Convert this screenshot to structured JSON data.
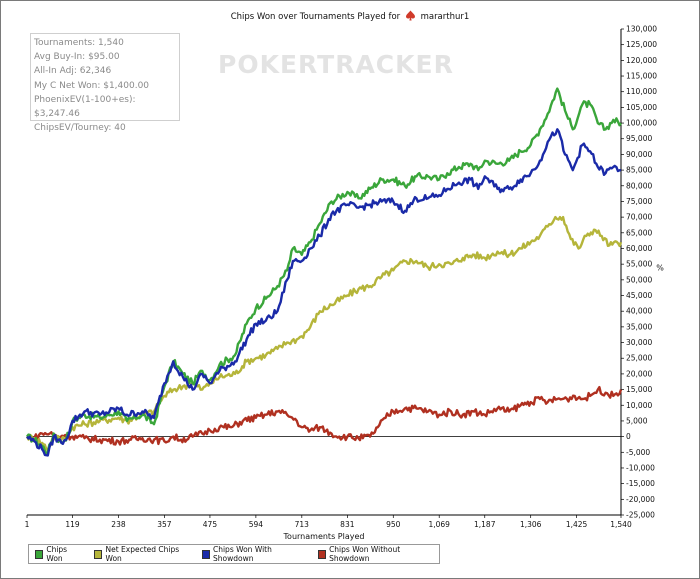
{
  "chart_data": {
    "type": "line",
    "title": "Chips Won over Tournaments Played for",
    "player": "mararthur1",
    "xlabel": "Tournaments Played",
    "ylabel": "%",
    "xlim": [
      1,
      1540
    ],
    "ylim": [
      -25000,
      130000
    ],
    "x_ticks": [
      1,
      119,
      238,
      357,
      475,
      594,
      713,
      831,
      950,
      1069,
      1187,
      1306,
      1425,
      1540
    ],
    "x_tick_labels": [
      "1",
      "119",
      "238",
      "357",
      "475",
      "594",
      "713",
      "831",
      "950",
      "1,069",
      "1,187",
      "1,306",
      "1,425",
      "1,540"
    ],
    "y_ticks": [
      -25000,
      -20000,
      -15000,
      -10000,
      -5000,
      0,
      5000,
      10000,
      15000,
      20000,
      25000,
      30000,
      35000,
      40000,
      45000,
      50000,
      55000,
      60000,
      65000,
      70000,
      75000,
      80000,
      85000,
      90000,
      95000,
      100000,
      105000,
      110000,
      115000,
      120000,
      125000,
      130000
    ],
    "y_tick_labels": [
      "-25,000",
      "-20,000",
      "-15,000",
      "-10,000",
      "-5,000",
      "0",
      "5,000",
      "10,000",
      "15,000",
      "20,000",
      "25,000",
      "30,000",
      "35,000",
      "40,000",
      "45,000",
      "50,000",
      "55,000",
      "60,000",
      "65,000",
      "70,000",
      "75,000",
      "80,000",
      "85,000",
      "90,000",
      "95,000",
      "100,000",
      "105,000",
      "110,000",
      "115,000",
      "120,000",
      "125,000",
      "130,000"
    ],
    "grid": false,
    "legend_position": "bottom-left",
    "series": [
      {
        "name": "Chips Won",
        "color": "#3aa63a",
        "points": [
          [
            1,
            0
          ],
          [
            20,
            -1000
          ],
          [
            40,
            -3000
          ],
          [
            55,
            -5000
          ],
          [
            70,
            1000
          ],
          [
            90,
            -2000
          ],
          [
            110,
            1000
          ],
          [
            119,
            5000
          ],
          [
            150,
            7000
          ],
          [
            190,
            6000
          ],
          [
            238,
            8000
          ],
          [
            260,
            5000
          ],
          [
            300,
            7000
          ],
          [
            330,
            4000
          ],
          [
            357,
            16000
          ],
          [
            380,
            24000
          ],
          [
            405,
            20000
          ],
          [
            430,
            17000
          ],
          [
            455,
            21000
          ],
          [
            475,
            18000
          ],
          [
            500,
            23000
          ],
          [
            540,
            26000
          ],
          [
            570,
            36000
          ],
          [
            594,
            41000
          ],
          [
            620,
            44000
          ],
          [
            650,
            48000
          ],
          [
            675,
            53000
          ],
          [
            690,
            60000
          ],
          [
            713,
            58000
          ],
          [
            735,
            62000
          ],
          [
            760,
            68000
          ],
          [
            790,
            75000
          ],
          [
            831,
            78000
          ],
          [
            860,
            76000
          ],
          [
            890,
            79000
          ],
          [
            920,
            82000
          ],
          [
            950,
            82000
          ],
          [
            980,
            80000
          ],
          [
            1010,
            83000
          ],
          [
            1040,
            83000
          ],
          [
            1069,
            82000
          ],
          [
            1090,
            84000
          ],
          [
            1120,
            86000
          ],
          [
            1150,
            87000
          ],
          [
            1170,
            85000
          ],
          [
            1187,
            88000
          ],
          [
            1220,
            87000
          ],
          [
            1250,
            88000
          ],
          [
            1280,
            91000
          ],
          [
            1306,
            93000
          ],
          [
            1330,
            98000
          ],
          [
            1350,
            103000
          ],
          [
            1375,
            111000
          ],
          [
            1395,
            104000
          ],
          [
            1415,
            98000
          ],
          [
            1440,
            106000
          ],
          [
            1460,
            106000
          ],
          [
            1480,
            100000
          ],
          [
            1500,
            98000
          ],
          [
            1520,
            101000
          ],
          [
            1540,
            100000
          ]
        ]
      },
      {
        "name": "Net Expected Chips Won",
        "color": "#b5b53a",
        "points": [
          [
            1,
            0
          ],
          [
            20,
            -500
          ],
          [
            40,
            -2000
          ],
          [
            55,
            -4000
          ],
          [
            70,
            0
          ],
          [
            90,
            -1000
          ],
          [
            110,
            1000
          ],
          [
            119,
            3000
          ],
          [
            150,
            4000
          ],
          [
            190,
            5000
          ],
          [
            238,
            6000
          ],
          [
            260,
            5000
          ],
          [
            300,
            7000
          ],
          [
            330,
            8000
          ],
          [
            357,
            13000
          ],
          [
            380,
            15000
          ],
          [
            405,
            16000
          ],
          [
            430,
            17000
          ],
          [
            455,
            15000
          ],
          [
            475,
            17000
          ],
          [
            500,
            19000
          ],
          [
            540,
            20000
          ],
          [
            570,
            24000
          ],
          [
            594,
            25000
          ],
          [
            620,
            26000
          ],
          [
            650,
            28000
          ],
          [
            675,
            30000
          ],
          [
            700,
            31000
          ],
          [
            713,
            32000
          ],
          [
            735,
            35000
          ],
          [
            760,
            40000
          ],
          [
            790,
            42000
          ],
          [
            831,
            45000
          ],
          [
            860,
            47000
          ],
          [
            890,
            48000
          ],
          [
            920,
            51000
          ],
          [
            950,
            53000
          ],
          [
            980,
            56000
          ],
          [
            1010,
            56000
          ],
          [
            1040,
            54000
          ],
          [
            1069,
            55000
          ],
          [
            1100,
            55000
          ],
          [
            1130,
            57000
          ],
          [
            1160,
            58000
          ],
          [
            1187,
            57000
          ],
          [
            1220,
            59000
          ],
          [
            1250,
            58000
          ],
          [
            1280,
            60000
          ],
          [
            1306,
            62000
          ],
          [
            1330,
            64000
          ],
          [
            1350,
            67000
          ],
          [
            1370,
            70000
          ],
          [
            1390,
            70000
          ],
          [
            1410,
            63000
          ],
          [
            1430,
            60000
          ],
          [
            1450,
            64000
          ],
          [
            1470,
            66000
          ],
          [
            1490,
            64000
          ],
          [
            1510,
            61000
          ],
          [
            1540,
            62000
          ]
        ]
      },
      {
        "name": "Chips Won With Showdown",
        "color": "#1a2aa8",
        "points": [
          [
            1,
            0
          ],
          [
            20,
            -1500
          ],
          [
            40,
            -4000
          ],
          [
            55,
            -6000
          ],
          [
            70,
            0
          ],
          [
            90,
            -2000
          ],
          [
            110,
            1000
          ],
          [
            119,
            5000
          ],
          [
            150,
            8000
          ],
          [
            190,
            7000
          ],
          [
            238,
            9000
          ],
          [
            260,
            7000
          ],
          [
            300,
            8000
          ],
          [
            330,
            6000
          ],
          [
            357,
            17000
          ],
          [
            380,
            24000
          ],
          [
            405,
            19000
          ],
          [
            430,
            15000
          ],
          [
            455,
            20000
          ],
          [
            475,
            17000
          ],
          [
            500,
            21000
          ],
          [
            540,
            24000
          ],
          [
            570,
            31000
          ],
          [
            594,
            36000
          ],
          [
            620,
            37000
          ],
          [
            650,
            40000
          ],
          [
            675,
            50000
          ],
          [
            690,
            56000
          ],
          [
            713,
            56000
          ],
          [
            735,
            60000
          ],
          [
            760,
            64000
          ],
          [
            790,
            71000
          ],
          [
            831,
            74000
          ],
          [
            860,
            73000
          ],
          [
            890,
            74000
          ],
          [
            920,
            75000
          ],
          [
            950,
            75000
          ],
          [
            980,
            72000
          ],
          [
            1010,
            76000
          ],
          [
            1040,
            76000
          ],
          [
            1069,
            77000
          ],
          [
            1090,
            79000
          ],
          [
            1120,
            81000
          ],
          [
            1150,
            82000
          ],
          [
            1170,
            79000
          ],
          [
            1187,
            83000
          ],
          [
            1220,
            79000
          ],
          [
            1250,
            79000
          ],
          [
            1280,
            82000
          ],
          [
            1306,
            84000
          ],
          [
            1330,
            88000
          ],
          [
            1350,
            94000
          ],
          [
            1375,
            98000
          ],
          [
            1395,
            90000
          ],
          [
            1415,
            85000
          ],
          [
            1440,
            93000
          ],
          [
            1460,
            91000
          ],
          [
            1480,
            86000
          ],
          [
            1500,
            84000
          ],
          [
            1520,
            86000
          ],
          [
            1540,
            85000
          ]
        ]
      },
      {
        "name": "Chips Won Without Showdown",
        "color": "#b03020",
        "points": [
          [
            1,
            0
          ],
          [
            20,
            -500
          ],
          [
            40,
            1000
          ],
          [
            60,
            1000
          ],
          [
            80,
            0
          ],
          [
            100,
            500
          ],
          [
            119,
            0
          ],
          [
            150,
            -500
          ],
          [
            190,
            -1000
          ],
          [
            238,
            -1500
          ],
          [
            270,
            -1000
          ],
          [
            300,
            -500
          ],
          [
            330,
            -1000
          ],
          [
            357,
            -1500
          ],
          [
            380,
            0
          ],
          [
            400,
            -1000
          ],
          [
            430,
            0
          ],
          [
            455,
            1000
          ],
          [
            475,
            2000
          ],
          [
            500,
            3000
          ],
          [
            530,
            3000
          ],
          [
            560,
            5000
          ],
          [
            594,
            6000
          ],
          [
            620,
            7000
          ],
          [
            650,
            8000
          ],
          [
            675,
            7000
          ],
          [
            700,
            5000
          ],
          [
            713,
            3000
          ],
          [
            735,
            2000
          ],
          [
            760,
            3000
          ],
          [
            790,
            1000
          ],
          [
            810,
            0
          ],
          [
            831,
            0
          ],
          [
            860,
            -500
          ],
          [
            890,
            0
          ],
          [
            910,
            3000
          ],
          [
            930,
            6000
          ],
          [
            950,
            8000
          ],
          [
            980,
            9000
          ],
          [
            1010,
            9000
          ],
          [
            1040,
            8000
          ],
          [
            1069,
            7000
          ],
          [
            1100,
            8000
          ],
          [
            1130,
            7000
          ],
          [
            1160,
            8000
          ],
          [
            1187,
            7000
          ],
          [
            1220,
            9000
          ],
          [
            1250,
            8000
          ],
          [
            1280,
            10000
          ],
          [
            1306,
            11000
          ],
          [
            1330,
            12000
          ],
          [
            1350,
            11000
          ],
          [
            1375,
            12000
          ],
          [
            1400,
            12000
          ],
          [
            1420,
            13000
          ],
          [
            1440,
            12000
          ],
          [
            1460,
            13000
          ],
          [
            1480,
            15000
          ],
          [
            1500,
            14000
          ],
          [
            1520,
            13000
          ],
          [
            1540,
            15000
          ]
        ]
      }
    ]
  },
  "stats_box": {
    "lines": [
      "Tournaments: 1,540",
      "Avg Buy-In: $95.00",
      "All-In Adj: 62,346",
      "My C Net Won: $1,400.00",
      "PhoenixEV(1-100+es): $3,247.46",
      "ChipsEV/Tourney: 40"
    ]
  },
  "watermark": {
    "brand": "POKERTRACKER"
  },
  "colors": {
    "background": "#ffffff",
    "axis": "#000000"
  }
}
